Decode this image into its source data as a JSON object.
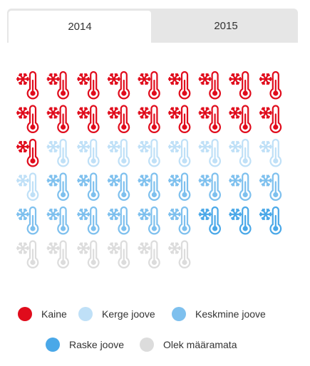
{
  "tabs": [
    {
      "label": "2014",
      "active": true
    },
    {
      "label": "2015",
      "active": false
    }
  ],
  "icon_name": "snowflake-thermometer-icon",
  "cells": [
    "Kaine",
    "Kaine",
    "Kaine",
    "Kaine",
    "Kaine",
    "Kaine",
    "Kaine",
    "Kaine",
    "Kaine",
    "Kaine",
    "Kaine",
    "Kaine",
    "Kaine",
    "Kaine",
    "Kaine",
    "Kaine",
    "Kaine",
    "Kaine",
    "Kaine",
    "Kerge joove",
    "Kerge joove",
    "Kerge joove",
    "Kerge joove",
    "Kerge joove",
    "Kerge joove",
    "Kerge joove",
    "Kerge joove",
    "Kerge joove",
    "Keskmine joove",
    "Keskmine joove",
    "Keskmine joove",
    "Keskmine joove",
    "Keskmine joove",
    "Keskmine joove",
    "Keskmine joove",
    "Keskmine joove",
    "Keskmine joove",
    "Keskmine joove",
    "Keskmine joove",
    "Keskmine joove",
    "Keskmine joove",
    "Keskmine joove",
    "Raske joove",
    "Raske joove",
    "Raske joove",
    "Olek määramata",
    "Olek määramata",
    "Olek määramata",
    "Olek määramata",
    "Olek määramata",
    "Olek määramata"
  ],
  "legend": [
    {
      "label": "Kaine",
      "color": "#e00c1c"
    },
    {
      "label": "Kerge joove",
      "color": "#bfe0f7"
    },
    {
      "label": "Keskmine joove",
      "color": "#7ec0ee"
    },
    {
      "label": "Raske joove",
      "color": "#4aa8e8"
    },
    {
      "label": "Olek määramata",
      "color": "#dcdcdc"
    }
  ]
}
